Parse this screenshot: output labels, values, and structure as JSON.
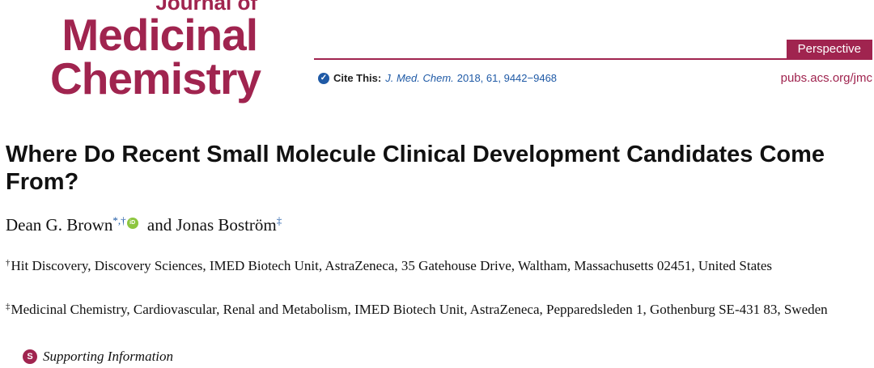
{
  "journal": {
    "name_line1": "Journal of",
    "name_line2": "Medicinal",
    "name_line3": "Chemistry",
    "url": "pubs.acs.org/jmc",
    "article_type": "Perspective",
    "brand_color": "#a0244f"
  },
  "citation": {
    "label": "Cite This:",
    "journal_abbrev": "J. Med. Chem.",
    "details": "2018, 61, 9442−9468"
  },
  "article": {
    "title": "Where Do Recent Small Molecule Clinical Development Candidates Come From?"
  },
  "authors": {
    "author1": "Dean G. Brown",
    "author1_marks": "*,†",
    "connector": "and",
    "author2": "Jonas Boström",
    "author2_marks": "‡"
  },
  "affiliations": [
    {
      "mark": "†",
      "text": "Hit Discovery, Discovery Sciences, IMED Biotech Unit, AstraZeneca, 35 Gatehouse Drive, Waltham, Massachusetts 02451, United States"
    },
    {
      "mark": "‡",
      "text": "Medicinal Chemistry, Cardiovascular, Renal and Metabolism, IMED Biotech Unit, AstraZeneca, Pepparedsleden 1, Gothenburg SE-431 83, Sweden"
    }
  ],
  "supporting": {
    "icon_letter": "S",
    "label": "Supporting Information"
  }
}
